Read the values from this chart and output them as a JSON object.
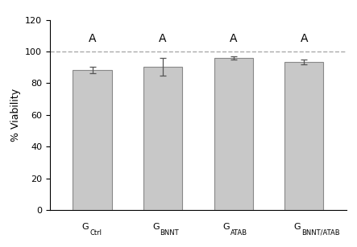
{
  "categories": [
    "G_Ctrl",
    "G_BNNT",
    "G_ATAB",
    "G_BNNT/ATAB"
  ],
  "values": [
    88.5,
    90.5,
    96.0,
    93.5
  ],
  "errors": [
    2.0,
    5.5,
    1.0,
    1.5
  ],
  "bar_color": "#C8C8C8",
  "bar_edge_color": "#888888",
  "letter_labels": [
    "A",
    "A",
    "A",
    "A"
  ],
  "ylabel": "% Viability",
  "ylim": [
    0,
    120
  ],
  "yticks": [
    0,
    20,
    40,
    60,
    80,
    100,
    120
  ],
  "dashed_line_y": 100,
  "dashed_line_color": "#aaaaaa",
  "letter_fontsize": 10,
  "ylabel_fontsize": 9,
  "tick_fontsize": 8,
  "xtick_main_fontsize": 8,
  "xtick_sub_fontsize": 6,
  "bar_width": 0.55,
  "figure_bg": "#ffffff",
  "axes_bg": "#ffffff",
  "label_configs": [
    [
      "G",
      "Ctrl"
    ],
    [
      "G",
      "BNNT"
    ],
    [
      "G",
      "ATAB"
    ],
    [
      "G",
      "BNNT/ATAB"
    ]
  ]
}
